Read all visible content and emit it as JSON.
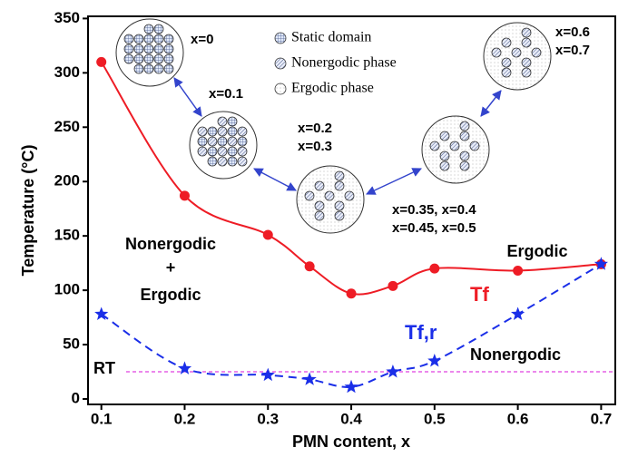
{
  "chart_data": {
    "type": "line",
    "x_label": "PMN content, x",
    "y_label": "Temperature (°C)",
    "x": [
      0.1,
      0.2,
      0.3,
      0.35,
      0.4,
      0.45,
      0.5,
      0.6,
      0.7
    ],
    "series": [
      {
        "name": "Tf",
        "color": "#ee1c25",
        "marker": "circle",
        "line_style": "solid",
        "values": [
          310,
          187,
          151,
          122,
          97,
          104,
          120,
          118,
          124
        ]
      },
      {
        "name": "Tf,r",
        "color": "#1a2ee8",
        "marker": "star",
        "line_style": "dashed",
        "values": [
          78,
          28,
          22,
          18,
          11,
          25,
          35,
          78,
          124
        ]
      }
    ],
    "reference_line": {
      "label": "RT",
      "value": 25,
      "color": "#e040e0"
    },
    "xlim": [
      0.084,
      0.717
    ],
    "ylim": [
      -5,
      352
    ],
    "xticks": [
      0.1,
      0.2,
      0.3,
      0.4,
      0.5,
      0.6,
      0.7
    ],
    "yticks": [
      0,
      50,
      100,
      150,
      200,
      250,
      300,
      350
    ],
    "annotations": [
      "Nonergodic",
      "+",
      "Ergodic",
      "Ergodic",
      "Nonergodic"
    ],
    "phase_legend": [
      "Static domain",
      "Nonergodic phase",
      "Ergodic phase"
    ],
    "insets": [
      {
        "lines": [
          "x=0"
        ]
      },
      {
        "lines": [
          "x=0.1"
        ]
      },
      {
        "lines": [
          "x=0.2",
          "x=0.3"
        ]
      },
      {
        "lines": [
          "x=0.35, x=0.4",
          "x=0.45, x=0.5"
        ]
      },
      {
        "lines": [
          "x=0.6",
          "x=0.7"
        ]
      }
    ]
  }
}
